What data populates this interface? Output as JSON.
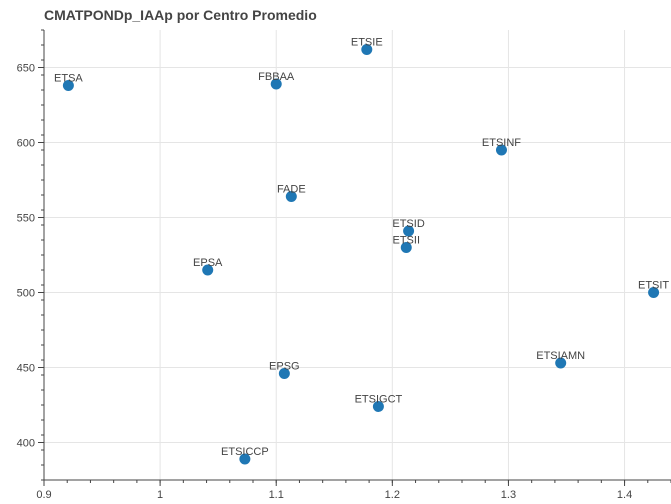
{
  "chart_data": {
    "type": "scatter",
    "title": "CMATPONDp_IAAp por Centro Promedio",
    "xlabel": "",
    "ylabel": "",
    "xlim": [
      0.9,
      1.44
    ],
    "ylim": [
      375,
      675
    ],
    "x_ticks": [
      0.9,
      1,
      1.1,
      1.2,
      1.3,
      1.4
    ],
    "x_tick_labels": [
      "0.9",
      "1",
      "1.1",
      "1.2",
      "1.3",
      "1.4"
    ],
    "y_ticks": [
      400,
      450,
      500,
      550,
      600,
      650
    ],
    "y_tick_labels": [
      "400",
      "450",
      "500",
      "550",
      "600",
      "650"
    ],
    "grid": true,
    "marker_color": "#1f77b4",
    "points": [
      {
        "label": "ETSA",
        "x": 0.921,
        "y": 638
      },
      {
        "label": "FBBAA",
        "x": 1.1,
        "y": 639
      },
      {
        "label": "ETSIE",
        "x": 1.178,
        "y": 662
      },
      {
        "label": "ETSINF",
        "x": 1.294,
        "y": 595
      },
      {
        "label": "FADE",
        "x": 1.113,
        "y": 564
      },
      {
        "label": "ETSID",
        "x": 1.214,
        "y": 541
      },
      {
        "label": "ETSII",
        "x": 1.212,
        "y": 530
      },
      {
        "label": "EPSA",
        "x": 1.041,
        "y": 515
      },
      {
        "label": "ETSIT",
        "x": 1.425,
        "y": 500
      },
      {
        "label": "ETSIAMN",
        "x": 1.345,
        "y": 453
      },
      {
        "label": "EPSG",
        "x": 1.107,
        "y": 446
      },
      {
        "label": "ETSIGCT",
        "x": 1.188,
        "y": 424
      },
      {
        "label": "ETSICCP",
        "x": 1.073,
        "y": 389
      }
    ]
  }
}
